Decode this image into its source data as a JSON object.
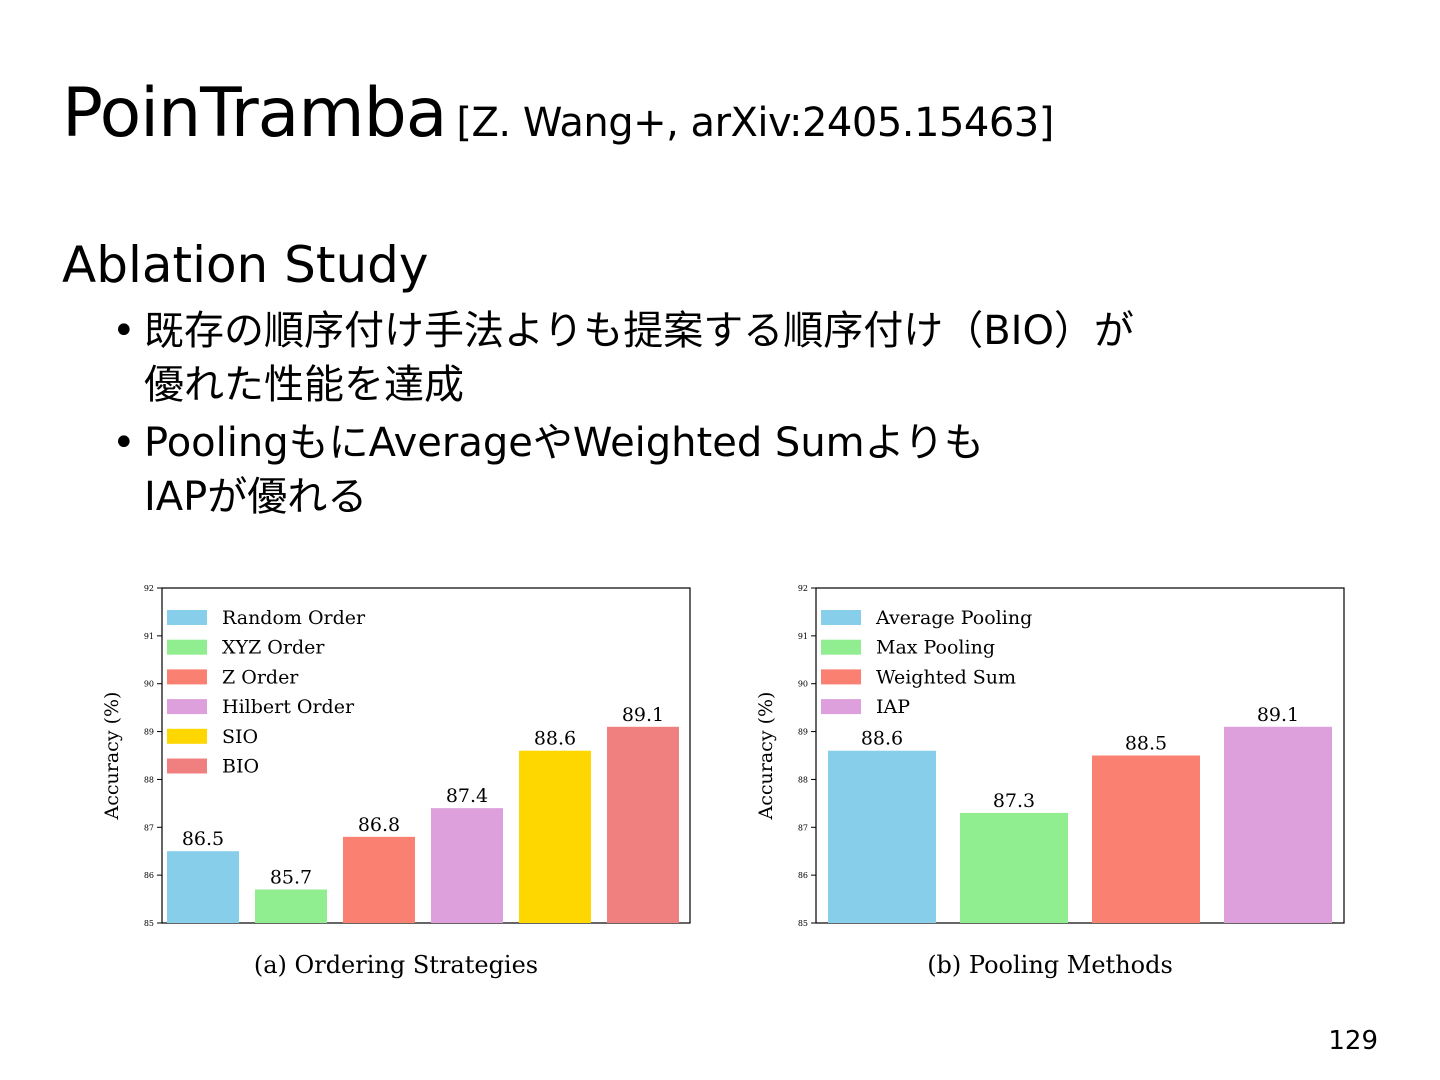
{
  "title": "PoinTramba",
  "citation": "[Z. Wang+, arXiv:2405.15463]",
  "section": "Ablation Study",
  "bullets": [
    [
      "既存の順序付け手法よりも提案する順序付け（BIO）が",
      "優れた性能を達成"
    ],
    [
      "PoolingもにAverageやWeighted Sumよりも",
      "IAPが優れる"
    ]
  ],
  "page_number": "129",
  "chart_data": [
    {
      "type": "bar",
      "caption": "(a) Ordering Strategies",
      "ylabel": "Accuracy (%)",
      "ylim": [
        85,
        92
      ],
      "yticks": [
        85,
        86,
        87,
        88,
        89,
        90,
        91,
        92
      ],
      "categories": [
        "Random Order",
        "XYZ Order",
        "Z Order",
        "Hilbert Order",
        "SIO",
        "BIO"
      ],
      "values": [
        86.5,
        85.7,
        86.8,
        87.4,
        88.6,
        89.1
      ],
      "colors": [
        "#87ceeb",
        "#90ee90",
        "#fa8072",
        "#dda0dd",
        "#ffd700",
        "#f08080"
      ],
      "legend": "top-left",
      "grid": false
    },
    {
      "type": "bar",
      "caption": "(b) Pooling Methods",
      "ylabel": "Accuracy (%)",
      "ylim": [
        85,
        92
      ],
      "yticks": [
        85,
        86,
        87,
        88,
        89,
        90,
        91,
        92
      ],
      "categories": [
        "Average Pooling",
        "Max Pooling",
        "Weighted Sum",
        "IAP"
      ],
      "values": [
        88.6,
        87.3,
        88.5,
        89.1
      ],
      "colors": [
        "#87ceeb",
        "#90ee90",
        "#fa8072",
        "#dda0dd"
      ],
      "legend": "top-left",
      "grid": false
    }
  ]
}
